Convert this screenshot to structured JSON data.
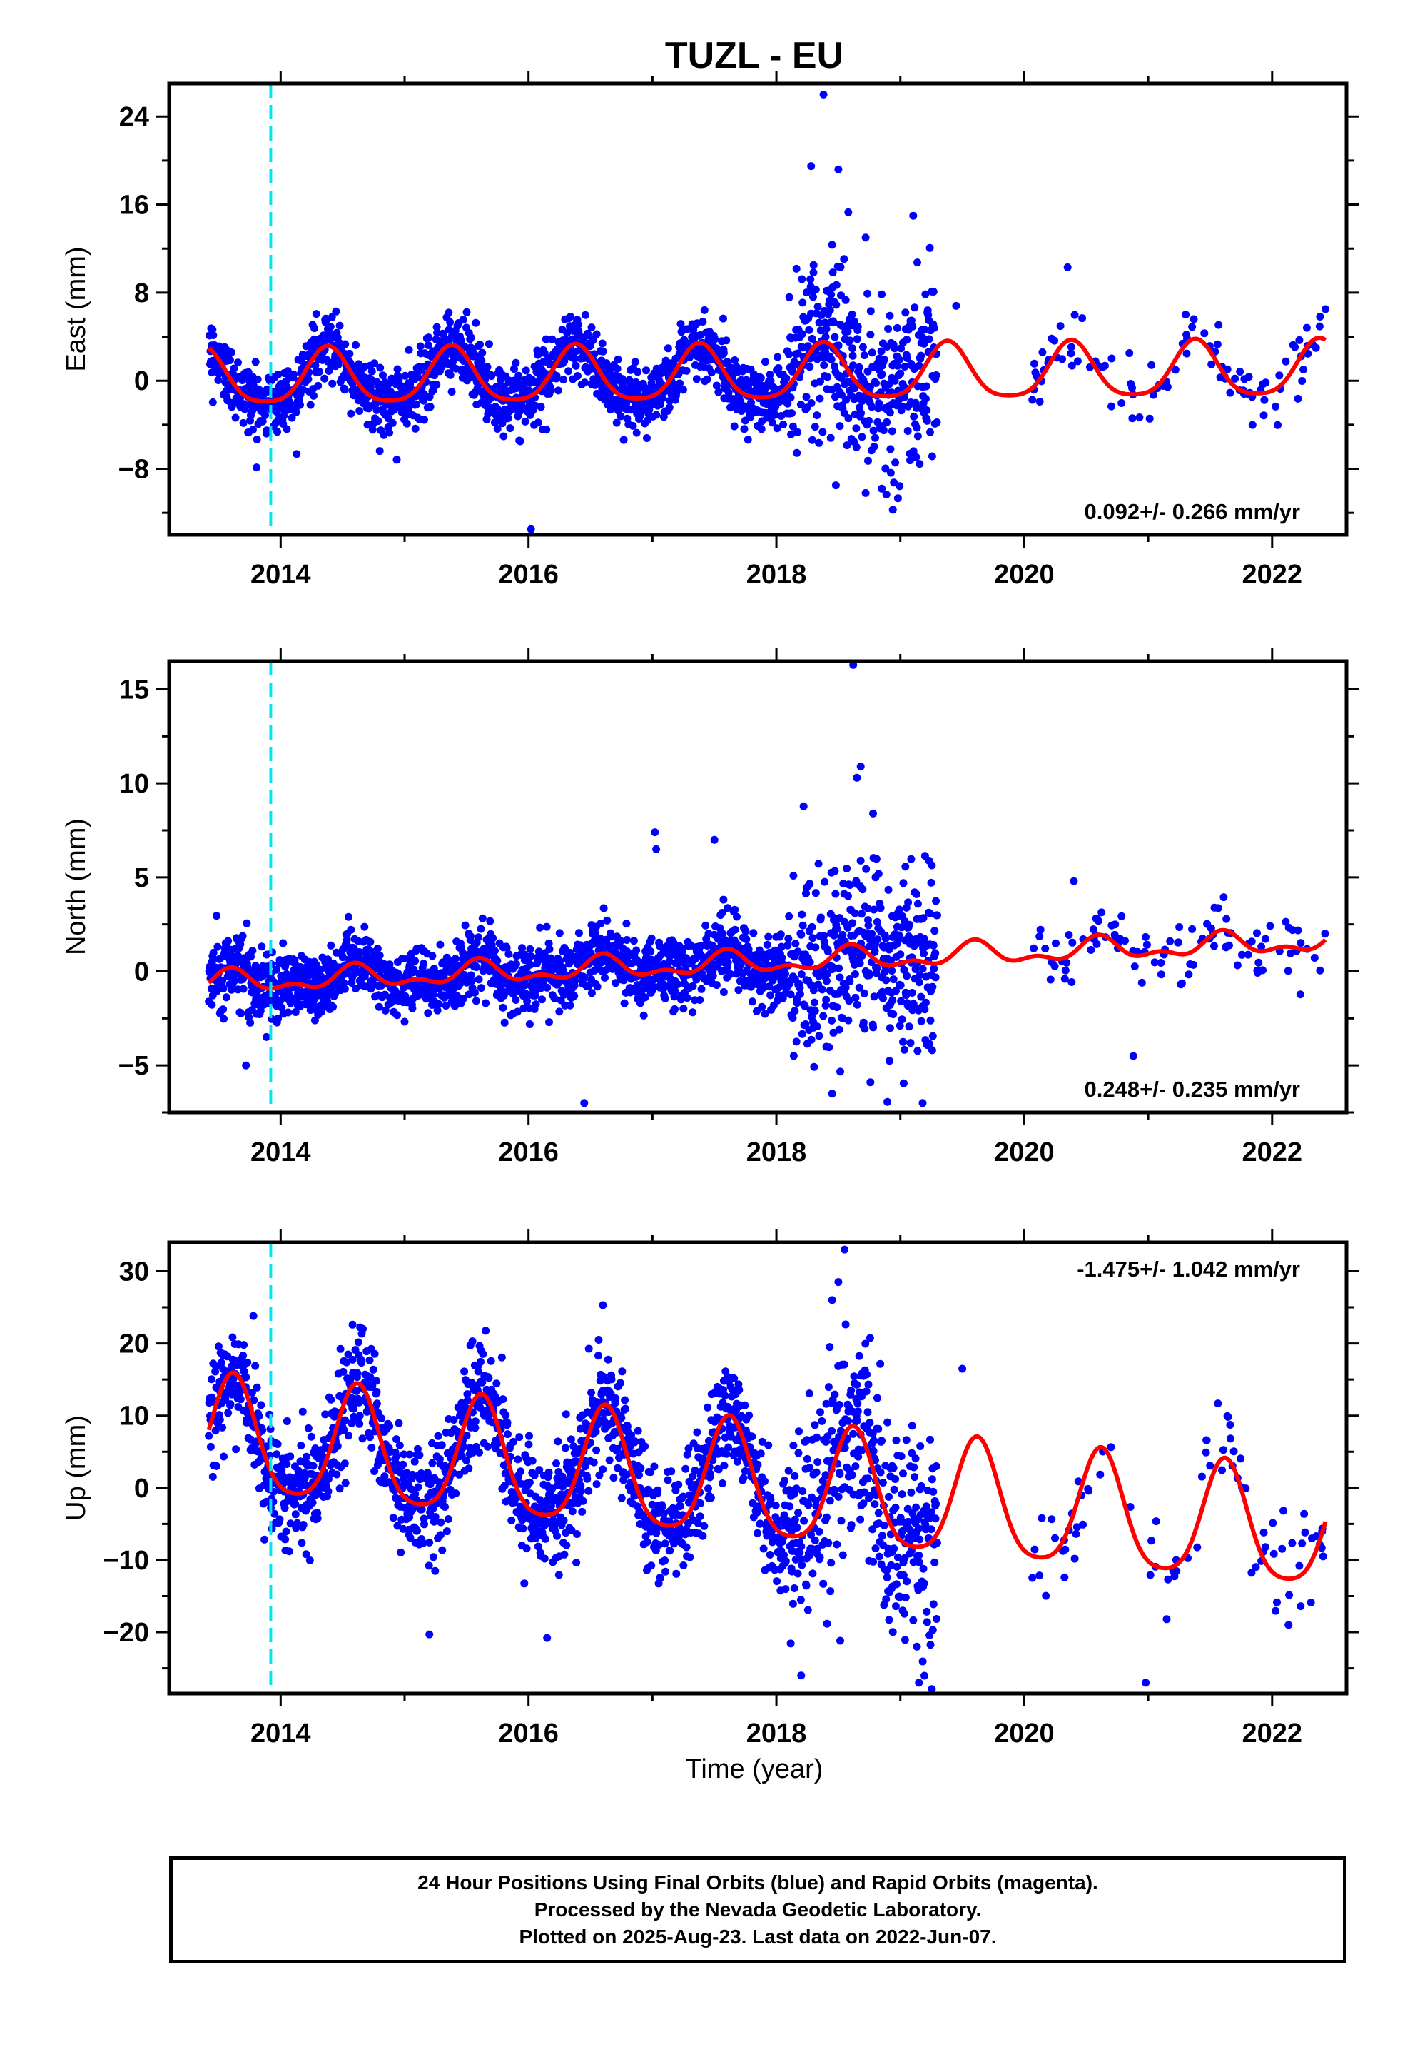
{
  "title": "TUZL - EU",
  "xlabel": "Time (year)",
  "colors": {
    "points": "#0000ff",
    "fit": "#ff0000",
    "event_line": "#00e5ee",
    "frame": "#000000"
  },
  "footer": {
    "line1": "24 Hour Positions Using Final Orbits (blue) and Rapid Orbits (magenta).",
    "line2": "Processed by the Nevada Geodetic Laboratory.",
    "line3": "Plotted on 2025-Aug-23. Last data on 2022-Jun-07."
  },
  "chart_data": [
    {
      "type": "scatter",
      "name": "east",
      "ylabel": "East (mm)",
      "xlim": [
        2013.1,
        2022.6
      ],
      "ylim": [
        -14,
        27
      ],
      "xticks": [
        2014,
        2016,
        2018,
        2020,
        2022
      ],
      "yticks": [
        -8,
        0,
        8,
        16,
        24
      ],
      "ytick_labels": [
        "−8",
        "0",
        "8",
        "16",
        "24"
      ],
      "rate_label": "0.092+/- 0.266 mm/yr",
      "rate_position": "bottom-right",
      "event_line_x": 2013.92,
      "data_start": 2013.42,
      "data_end": 2022.43,
      "gaps": [
        [
          2019.3,
          2020.05
        ]
      ],
      "fit": {
        "offset": 0.5,
        "rate": 0.092,
        "t0": 2018.0,
        "annual_amp": 2.5,
        "annual_phase_peak": 2013.38,
        "semiannual_amp": 0.5
      },
      "scatter_sd": 1.5,
      "noisy_interval": [
        2018.1,
        2019.3
      ],
      "noisy_sd": 4.0,
      "outliers": [
        [
          2018.38,
          26.0
        ],
        [
          2018.28,
          19.5
        ],
        [
          2018.5,
          19.2
        ],
        [
          2018.58,
          15.3
        ],
        [
          2018.72,
          13.0
        ],
        [
          2016.02,
          -13.5
        ],
        [
          2018.48,
          -9.5
        ],
        [
          2018.72,
          -10.2
        ],
        [
          2018.85,
          -9.8
        ],
        [
          2020.35,
          10.3
        ],
        [
          2019.45,
          6.8
        ],
        [
          2022.43,
          6.5
        ],
        [
          2018.3,
          10.5
        ]
      ]
    },
    {
      "type": "scatter",
      "name": "north",
      "ylabel": "North (mm)",
      "xlim": [
        2013.1,
        2022.6
      ],
      "ylim": [
        -7.5,
        16.5
      ],
      "xticks": [
        2014,
        2016,
        2018,
        2020,
        2022
      ],
      "yticks": [
        -5,
        0,
        5,
        10,
        15
      ],
      "ytick_labels": [
        "−5",
        "0",
        "5",
        "10",
        "15"
      ],
      "rate_label": "0.248+/- 0.235 mm/yr",
      "rate_position": "bottom-right",
      "event_line_x": 2013.92,
      "data_start": 2013.42,
      "data_end": 2022.43,
      "gaps": [
        [
          2019.3,
          2020.05
        ]
      ],
      "fit": {
        "offset": 0.5,
        "rate": 0.248,
        "t0": 2018.0,
        "annual_amp": 0.5,
        "annual_phase_peak": 2013.6,
        "semiannual_amp": 0.3
      },
      "scatter_sd": 0.9,
      "noisy_interval": [
        2018.1,
        2019.3
      ],
      "noisy_sd": 2.6,
      "outliers": [
        [
          2018.62,
          16.3
        ],
        [
          2018.68,
          10.9
        ],
        [
          2018.65,
          10.3
        ],
        [
          2018.78,
          8.4
        ],
        [
          2017.02,
          7.4
        ],
        [
          2017.03,
          6.5
        ],
        [
          2017.5,
          7.0
        ],
        [
          2016.45,
          -7.0
        ],
        [
          2019.18,
          -7.0
        ],
        [
          2018.45,
          -6.5
        ],
        [
          2020.88,
          -4.5
        ],
        [
          2013.72,
          -5.0
        ],
        [
          2020.4,
          4.8
        ]
      ]
    },
    {
      "type": "scatter",
      "name": "up",
      "ylabel": "Up (mm)",
      "xlim": [
        2013.1,
        2022.6
      ],
      "ylim": [
        -28.5,
        34
      ],
      "xticks": [
        2014,
        2016,
        2018,
        2020,
        2022
      ],
      "yticks": [
        -20,
        -10,
        0,
        10,
        20,
        30
      ],
      "ytick_labels": [
        "−20",
        "−10",
        "0",
        "10",
        "20",
        "30"
      ],
      "rate_label": "-1.475+/- 1.042 mm/yr",
      "rate_position": "top-right",
      "event_line_x": 2013.92,
      "data_start": 2013.42,
      "data_end": 2022.43,
      "gaps": [
        [
          2019.3,
          2020.05
        ]
      ],
      "fit": {
        "offset": 0.0,
        "rate": -1.475,
        "t0": 2018.0,
        "annual_amp": 8.0,
        "annual_phase_peak": 2013.62,
        "semiannual_amp": 1.5
      },
      "scatter_sd": 3.8,
      "noisy_interval": [
        2018.1,
        2019.3
      ],
      "noisy_sd": 8.0,
      "outliers": [
        [
          2018.55,
          33.0
        ],
        [
          2018.5,
          28.5
        ],
        [
          2016.6,
          25.3
        ],
        [
          2018.45,
          26.0
        ],
        [
          2014.58,
          22.6
        ],
        [
          2019.15,
          -27.0
        ],
        [
          2018.2,
          -26.0
        ],
        [
          2020.98,
          -27.0
        ],
        [
          2015.2,
          -20.3
        ],
        [
          2016.15,
          -20.8
        ],
        [
          2013.78,
          23.8
        ],
        [
          2019.5,
          16.5
        ]
      ]
    }
  ]
}
